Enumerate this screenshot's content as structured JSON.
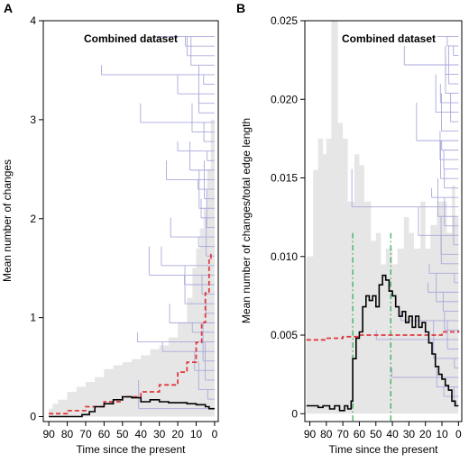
{
  "colors": {
    "band": "#e6e6e6",
    "tree": "#a9a9dc",
    "observed": "#000000",
    "expected": "#e0393f",
    "shift": "#2aa84a"
  },
  "chart_data": [
    {
      "panel": "A",
      "type": "line",
      "title": "Combined dataset",
      "xlabel": "Time since the present",
      "ylabel": "Mean number of changes",
      "xlim": [
        93,
        -2
      ],
      "ylim": [
        -0.05,
        4
      ],
      "xticks": [
        90,
        80,
        70,
        60,
        50,
        40,
        30,
        20,
        10,
        0
      ],
      "yticks": [
        0,
        1,
        2,
        3,
        4
      ],
      "series": [
        {
          "kind": "band",
          "points": [
            [
              90,
              0.08
            ],
            [
              88,
              0.13
            ],
            [
              85,
              0.17
            ],
            [
              80,
              0.25
            ],
            [
              75,
              0.3
            ],
            [
              70,
              0.35
            ],
            [
              65,
              0.4
            ],
            [
              60,
              0.48
            ],
            [
              55,
              0.52
            ],
            [
              50,
              0.55
            ],
            [
              45,
              0.58
            ],
            [
              40,
              0.62
            ],
            [
              35,
              0.68
            ],
            [
              30,
              0.72
            ],
            [
              25,
              0.8
            ],
            [
              20,
              0.95
            ],
            [
              15,
              1.2
            ],
            [
              12,
              1.5
            ],
            [
              10,
              1.7
            ],
            [
              8,
              1.9
            ],
            [
              6,
              2.1
            ],
            [
              4,
              2.5
            ],
            [
              2,
              3.0
            ],
            [
              0,
              3.4
            ]
          ]
        },
        {
          "kind": "expected",
          "points": [
            [
              90,
              0.03
            ],
            [
              80,
              0.06
            ],
            [
              70,
              0.1
            ],
            [
              60,
              0.15
            ],
            [
              50,
              0.2
            ],
            [
              40,
              0.25
            ],
            [
              30,
              0.32
            ],
            [
              20,
              0.45
            ],
            [
              15,
              0.55
            ],
            [
              10,
              0.75
            ],
            [
              7,
              0.95
            ],
            [
              5,
              1.25
            ],
            [
              3,
              1.6
            ],
            [
              2,
              1.65
            ],
            [
              1,
              1.65
            ]
          ]
        },
        {
          "kind": "observed",
          "points": [
            [
              90,
              0.0
            ],
            [
              75,
              0.0
            ],
            [
              72,
              0.02
            ],
            [
              68,
              0.05
            ],
            [
              65,
              0.1
            ],
            [
              60,
              0.13
            ],
            [
              55,
              0.17
            ],
            [
              50,
              0.2
            ],
            [
              45,
              0.19
            ],
            [
              40,
              0.15
            ],
            [
              35,
              0.17
            ],
            [
              30,
              0.15
            ],
            [
              25,
              0.14
            ],
            [
              20,
              0.14
            ],
            [
              15,
              0.13
            ],
            [
              10,
              0.12
            ],
            [
              5,
              0.1
            ],
            [
              3,
              0.08
            ],
            [
              0,
              0.08
            ]
          ]
        }
      ]
    },
    {
      "panel": "B",
      "type": "line",
      "title": "Combined dataset",
      "xlabel": "Time since the present",
      "ylabel": "Mean number of changes/total edge length",
      "xlim": [
        93,
        -2
      ],
      "ylim": [
        -0.0005,
        0.025
      ],
      "xticks": [
        90,
        80,
        70,
        60,
        50,
        40,
        30,
        20,
        10,
        0
      ],
      "yticks": [
        0,
        0.005,
        0.01,
        0.015,
        0.02,
        0.025
      ],
      "ytick_labels": [
        "0",
        "0.005",
        "0.010",
        "0.015",
        "0.020",
        "0.025"
      ],
      "vlines": [
        64,
        41
      ],
      "series": [
        {
          "kind": "band",
          "points": [
            [
              92,
              0.01
            ],
            [
              88,
              0.0155
            ],
            [
              85,
              0.0175
            ],
            [
              82,
              0.0165
            ],
            [
              80,
              0.0175
            ],
            [
              77,
              0.025
            ],
            [
              73,
              0.0185
            ],
            [
              70,
              0.0175
            ],
            [
              67,
              0.0135
            ],
            [
              63,
              0.0165
            ],
            [
              60,
              0.0158
            ],
            [
              57,
              0.0135
            ],
            [
              53,
              0.011
            ],
            [
              50,
              0.0115
            ],
            [
              47,
              0.0095
            ],
            [
              44,
              0.0105
            ],
            [
              40,
              0.0095
            ],
            [
              37,
              0.0105
            ],
            [
              33,
              0.0125
            ],
            [
              30,
              0.0115
            ],
            [
              27,
              0.0105
            ],
            [
              23,
              0.0135
            ],
            [
              20,
              0.0105
            ],
            [
              17,
              0.012
            ],
            [
              13,
              0.0135
            ],
            [
              10,
              0.0135
            ],
            [
              7,
              0.0115
            ],
            [
              4,
              0.0145
            ],
            [
              2,
              0.0125
            ],
            [
              0,
              0.012
            ]
          ]
        },
        {
          "kind": "expected",
          "points": [
            [
              92,
              0.0047
            ],
            [
              80,
              0.0048
            ],
            [
              70,
              0.0049
            ],
            [
              60,
              0.005
            ],
            [
              50,
              0.005
            ],
            [
              40,
              0.005
            ],
            [
              30,
              0.005
            ],
            [
              20,
              0.005
            ],
            [
              10,
              0.0052
            ],
            [
              0,
              0.0053
            ]
          ]
        },
        {
          "kind": "observed",
          "points": [
            [
              92,
              0.0005
            ],
            [
              88,
              0.0005
            ],
            [
              85,
              0.0004
            ],
            [
              82,
              0.0005
            ],
            [
              78,
              0.0003
            ],
            [
              75,
              0.0005
            ],
            [
              72,
              0.0002
            ],
            [
              69,
              0.0005
            ],
            [
              67,
              0.0003
            ],
            [
              65,
              0.0008
            ],
            [
              64,
              0.0035
            ],
            [
              62,
              0.0048
            ],
            [
              60,
              0.0052
            ],
            [
              58,
              0.0068
            ],
            [
              56,
              0.0075
            ],
            [
              54,
              0.0072
            ],
            [
              52,
              0.0075
            ],
            [
              50,
              0.0068
            ],
            [
              48,
              0.0082
            ],
            [
              46,
              0.0088
            ],
            [
              44,
              0.0085
            ],
            [
              42,
              0.0078
            ],
            [
              40,
              0.0075
            ],
            [
              38,
              0.0068
            ],
            [
              36,
              0.0062
            ],
            [
              34,
              0.0065
            ],
            [
              32,
              0.0058
            ],
            [
              30,
              0.0062
            ],
            [
              28,
              0.0055
            ],
            [
              26,
              0.0062
            ],
            [
              24,
              0.0055
            ],
            [
              22,
              0.0058
            ],
            [
              20,
              0.0052
            ],
            [
              18,
              0.0045
            ],
            [
              16,
              0.0038
            ],
            [
              14,
              0.003
            ],
            [
              12,
              0.0025
            ],
            [
              10,
              0.0022
            ],
            [
              8,
              0.0018
            ],
            [
              6,
              0.0015
            ],
            [
              4,
              0.0008
            ],
            [
              2,
              0.0005
            ],
            [
              0,
              0.0005
            ]
          ]
        }
      ]
    }
  ]
}
